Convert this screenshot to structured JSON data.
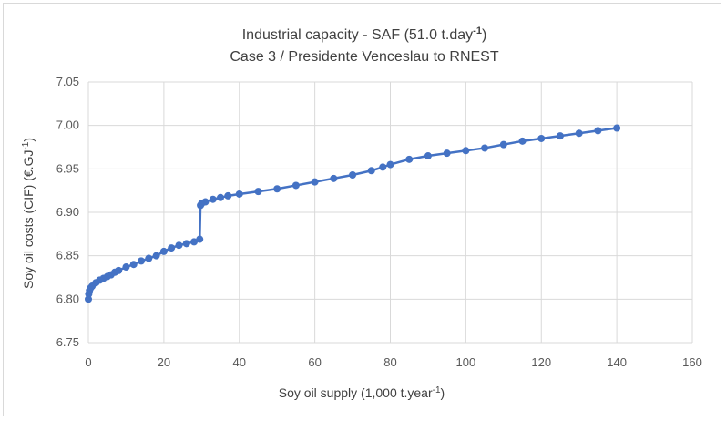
{
  "chart_data": {
    "type": "scatter",
    "title": "Industrial capacity - SAF (51.0 t.day",
    "title_sup": "-1",
    "title_close": ")",
    "subtitle": "Case 3 / Presidente  Venceslau  to RNEST",
    "xlabel": "Soy oil supply (1,000 t.year",
    "xlabel_sup": "-1",
    "xlabel_close": ")",
    "ylabel": "Soy oil costs (CIF) (€.GJ",
    "ylabel_sup": "-1",
    "ylabel_close": ")",
    "xlim": [
      0,
      160
    ],
    "ylim": [
      6.75,
      7.05
    ],
    "x_ticks": [
      "0",
      "20",
      "40",
      "60",
      "80",
      "100",
      "120",
      "140",
      "160"
    ],
    "y_ticks": [
      "6.75",
      "6.80",
      "6.85",
      "6.90",
      "6.95",
      "7.00",
      "7.05"
    ],
    "grid": true,
    "legend": "none",
    "series_color": "#4472c4",
    "series": [
      {
        "x": [
          0,
          0.1,
          0.3,
          0.6,
          1,
          2,
          3,
          4,
          5,
          6,
          7,
          8,
          10,
          12,
          14,
          16,
          18,
          20,
          22,
          24,
          26,
          28,
          29.5,
          29.7,
          30,
          31,
          33,
          35,
          37,
          40,
          45,
          50,
          55,
          60,
          65,
          70,
          75,
          78,
          80,
          85,
          90,
          95,
          100,
          105,
          110,
          115,
          120,
          125,
          130,
          135,
          140
        ],
        "y": [
          6.8,
          6.806,
          6.81,
          6.813,
          6.815,
          6.819,
          6.822,
          6.824,
          6.826,
          6.828,
          6.831,
          6.833,
          6.837,
          6.84,
          6.844,
          6.847,
          6.85,
          6.855,
          6.859,
          6.862,
          6.864,
          6.866,
          6.869,
          6.908,
          6.91,
          6.912,
          6.915,
          6.917,
          6.919,
          6.921,
          6.924,
          6.927,
          6.931,
          6.935,
          6.939,
          6.943,
          6.948,
          6.952,
          6.955,
          6.961,
          6.965,
          6.968,
          6.971,
          6.974,
          6.978,
          6.982,
          6.985,
          6.988,
          6.991,
          6.994,
          6.997
        ]
      }
    ]
  }
}
